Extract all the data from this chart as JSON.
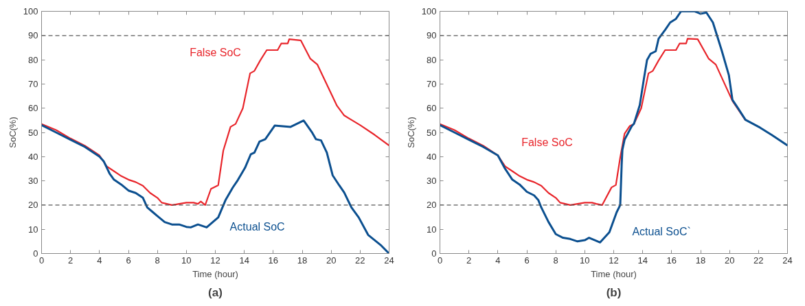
{
  "chart_data": [
    {
      "type": "line",
      "title": "(a)",
      "xlabel": "Time (hour)",
      "ylabel": "SoC(%)",
      "xlim": [
        0,
        24
      ],
      "ylim": [
        0,
        100
      ],
      "xticks": [
        0,
        2,
        4,
        6,
        8,
        10,
        12,
        14,
        16,
        18,
        20,
        22,
        24
      ],
      "yticks": [
        0,
        10,
        20,
        30,
        40,
        50,
        60,
        70,
        80,
        90,
        100
      ],
      "grid": false,
      "ref_lines": [
        {
          "axis": "y",
          "value": 90,
          "color": "#555555",
          "line_style": "dashed"
        },
        {
          "axis": "y",
          "value": 20,
          "color": "#555555",
          "line_style": "dashed"
        }
      ],
      "series": [
        {
          "name": "False SoC",
          "color": "#e8242a",
          "x": [
            0,
            1,
            2,
            3,
            4,
            4.5,
            5,
            5.5,
            6,
            6.5,
            7,
            7.5,
            8,
            8.3,
            9,
            9.5,
            10,
            10.5,
            10.8,
            11,
            11.3,
            11.7,
            12.2,
            12.55,
            13.05,
            13.4,
            13.9,
            14.4,
            14.7,
            15.1,
            15.55,
            16.3,
            16.55,
            17.0,
            17.1,
            17.9,
            18.55,
            19.05,
            20.4,
            20.9,
            22,
            23,
            24
          ],
          "values": [
            53.5,
            51,
            47.5,
            44.5,
            40.5,
            36,
            34,
            32,
            30.5,
            29.5,
            28,
            25,
            23,
            21,
            20,
            20.5,
            21,
            21,
            20.5,
            21.5,
            20,
            26.7,
            28.2,
            42.5,
            52.3,
            53.5,
            60,
            74.4,
            75.4,
            79.7,
            84,
            84,
            86.7,
            86.7,
            88.5,
            88,
            80.5,
            78,
            61,
            57,
            53,
            49,
            44.6
          ]
        },
        {
          "name": "Actual SoC",
          "color": "#0b4f8f",
          "x": [
            0,
            1,
            2,
            3,
            4,
            4.3,
            4.7,
            5,
            5.5,
            6,
            6.5,
            7,
            7.3,
            7.7,
            8,
            8.5,
            9,
            9.5,
            10,
            10.3,
            10.8,
            11.4,
            12.2,
            12.7,
            13.2,
            13.55,
            14.05,
            14.45,
            14.7,
            15.05,
            15.45,
            16.1,
            17.2,
            18.1,
            18.7,
            18.95,
            19.3,
            19.7,
            20.1,
            20.55,
            20.9,
            21.4,
            21.9,
            22.55,
            23.4,
            24
          ],
          "values": [
            53,
            50,
            47,
            44,
            40,
            38,
            33,
            30.5,
            28.5,
            26,
            25,
            23,
            19,
            17,
            15.5,
            13,
            12,
            12,
            11,
            10.8,
            12,
            10.8,
            14.9,
            22,
            27.2,
            30.3,
            35.4,
            41,
            41.7,
            46.2,
            47.2,
            52.8,
            52.3,
            54.9,
            49.8,
            47.2,
            46.7,
            41.7,
            32.3,
            28.2,
            25.2,
            19,
            14.9,
            7.7,
            3.6,
            0
          ]
        }
      ]
    },
    {
      "type": "line",
      "title": "(b)",
      "xlabel": "Time (hour)",
      "ylabel": "SoC(%)",
      "xlim": [
        0,
        24
      ],
      "ylim": [
        0,
        100
      ],
      "xticks": [
        0,
        2,
        4,
        6,
        8,
        10,
        12,
        14,
        16,
        18,
        20,
        22,
        24
      ],
      "yticks": [
        0,
        10,
        20,
        30,
        40,
        50,
        60,
        70,
        80,
        90,
        100
      ],
      "grid": false,
      "ref_lines": [
        {
          "axis": "y",
          "value": 90,
          "color": "#555555",
          "line_style": "dashed"
        },
        {
          "axis": "y",
          "value": 20,
          "color": "#555555",
          "line_style": "dashed"
        }
      ],
      "series": [
        {
          "name": "False SoC",
          "color": "#e8242a",
          "x": [
            0,
            1,
            2,
            3,
            4,
            4.5,
            5,
            5.5,
            6,
            6.5,
            7,
            7.5,
            8,
            8.3,
            9,
            9.5,
            10,
            10.5,
            10.8,
            11.2,
            11.85,
            12.15,
            12.45,
            12.75,
            13.1,
            13.4,
            13.9,
            14.4,
            14.7,
            15.1,
            15.55,
            16.3,
            16.55,
            17.0,
            17.1,
            17.8,
            18.55,
            19.05,
            20.2,
            21.1
          ],
          "values": [
            53.5,
            51,
            47.5,
            44.5,
            40.5,
            36,
            34,
            32,
            30.5,
            29.5,
            28,
            25,
            23,
            21,
            20,
            20.5,
            21,
            21,
            20.5,
            20,
            27.3,
            28.3,
            39.7,
            49.5,
            52.6,
            53.5,
            60,
            74.4,
            75.4,
            79.7,
            84,
            84,
            86.7,
            86.7,
            88.7,
            88.5,
            80.5,
            78,
            63,
            55
          ]
        },
        {
          "name": "Actual SoC`",
          "color": "#0b4f8f",
          "x": [
            0,
            1,
            2,
            3,
            4,
            4.5,
            5,
            5.5,
            6,
            6.5,
            6.8,
            7,
            7.5,
            8,
            8.5,
            9,
            9.5,
            10,
            10.3,
            10.7,
            11.06,
            11.7,
            12.2,
            12.45,
            12.55,
            12.6,
            12.75,
            13.25,
            13.4,
            13.8,
            14.1,
            14.3,
            14.55,
            14.9,
            15.1,
            15.55,
            15.9,
            16.3,
            16.65,
            17.6,
            18.0,
            18.4,
            18.85,
            19.45,
            19.95,
            20.2,
            20.55,
            21.1,
            22.1,
            22.9,
            24
          ],
          "values": [
            53,
            50,
            47,
            44,
            40.5,
            35,
            30.5,
            28.5,
            25.5,
            24,
            22,
            19,
            13,
            8,
            6.5,
            6,
            5,
            5.5,
            6.5,
            5.5,
            4.6,
            8.8,
            17,
            20,
            36.6,
            42.8,
            47,
            52.6,
            53.6,
            61.3,
            72.7,
            79.9,
            82.5,
            83.5,
            88.7,
            92.3,
            95.4,
            96.9,
            100,
            100,
            99,
            99.5,
            95.4,
            84,
            73.7,
            63.4,
            60.3,
            55.2,
            52,
            49,
            44.6
          ]
        }
      ]
    }
  ]
}
